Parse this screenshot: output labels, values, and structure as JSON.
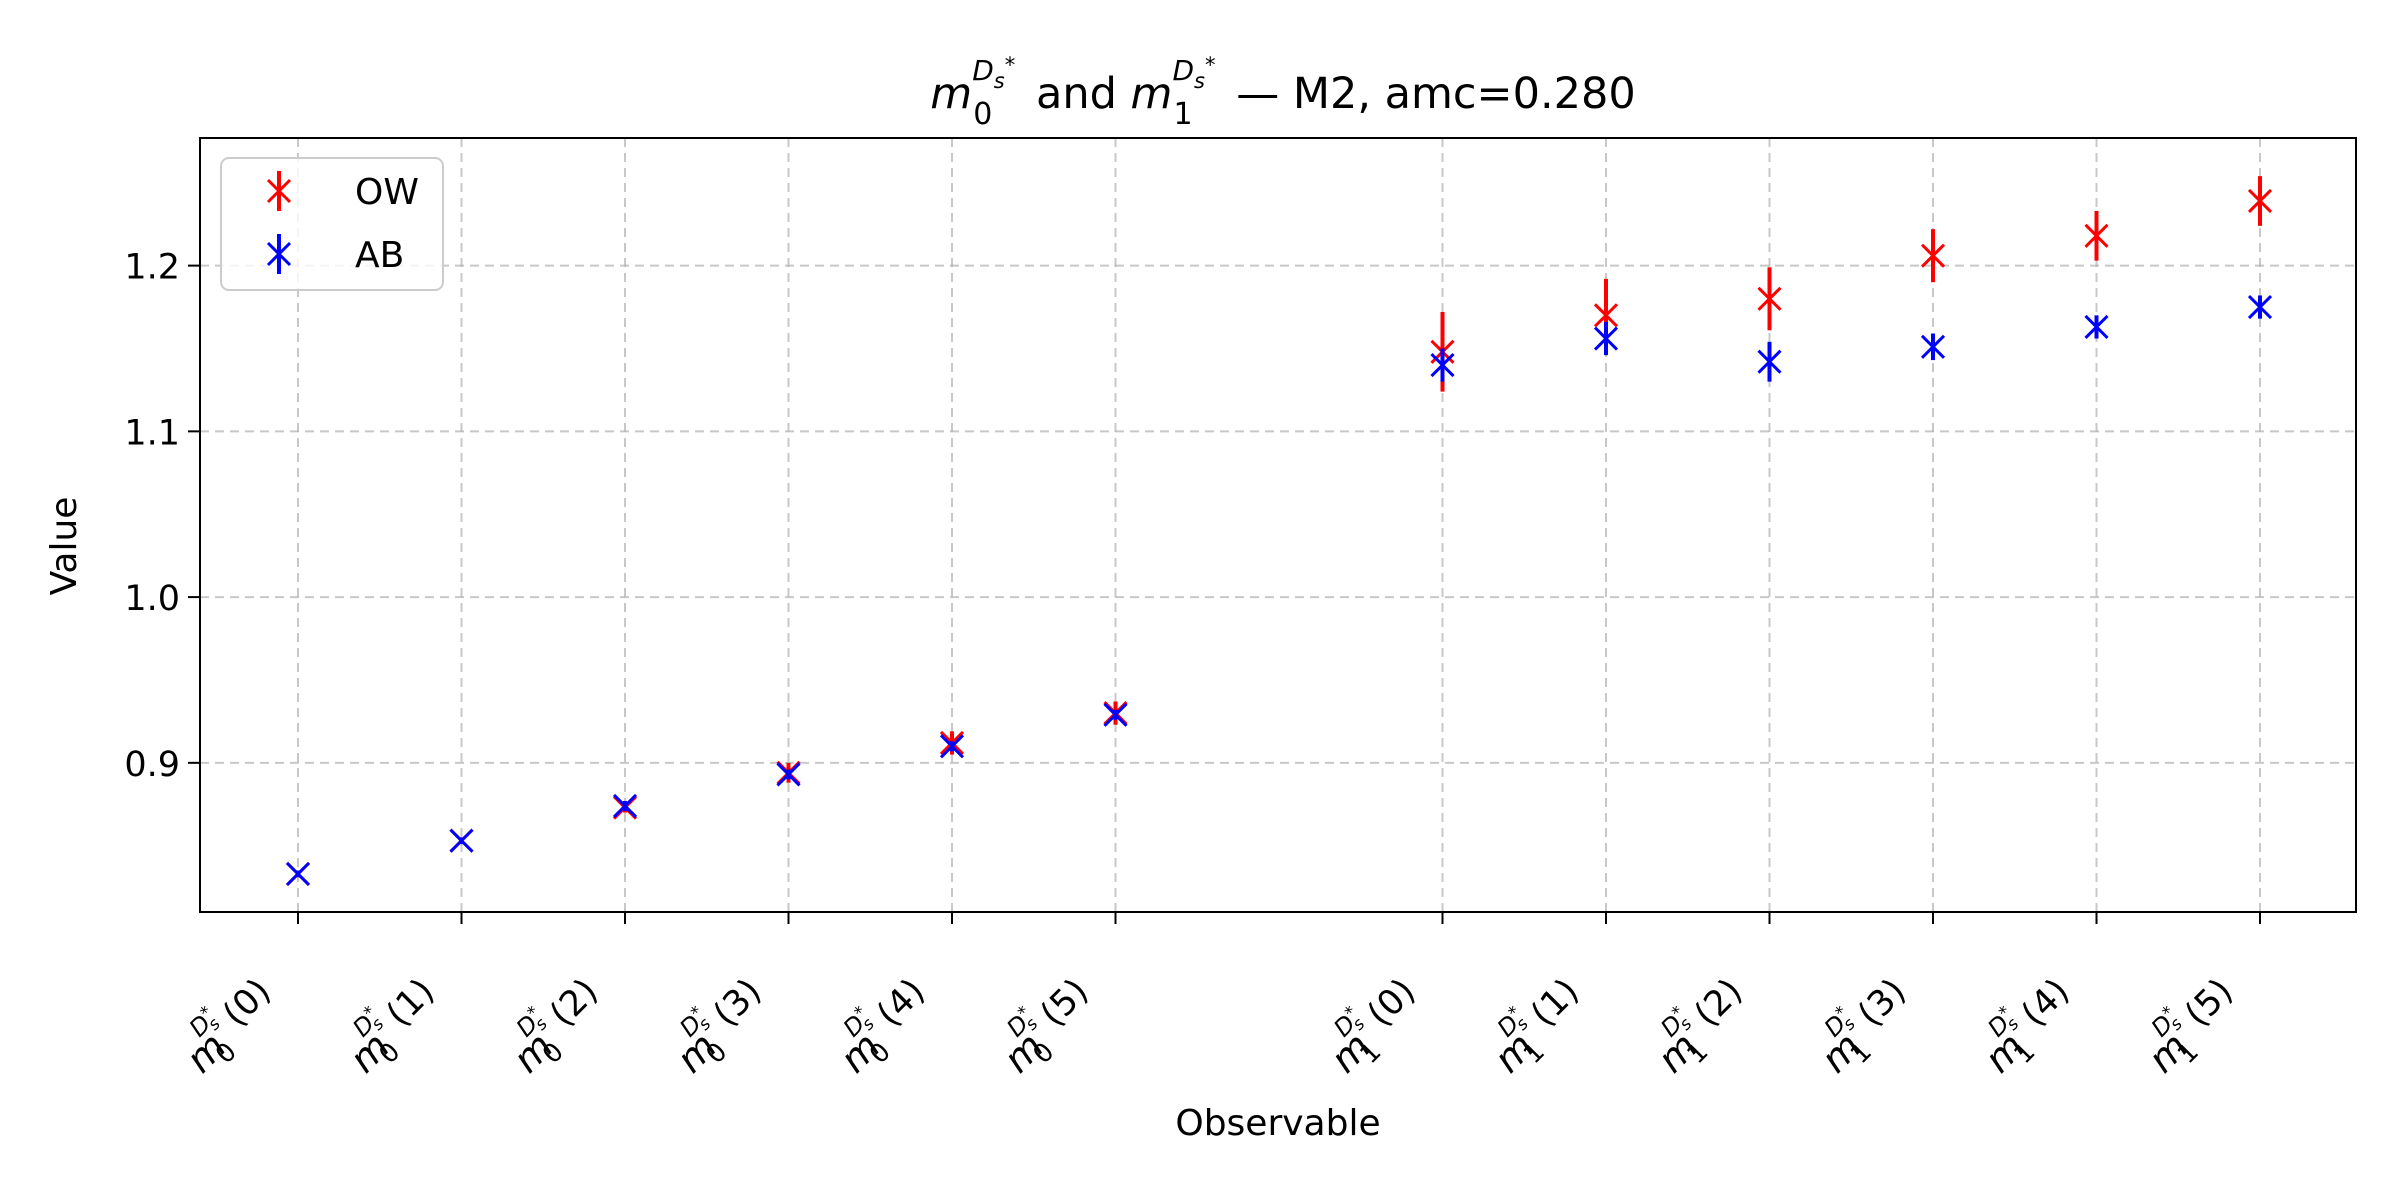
{
  "chart_data": {
    "type": "scatter",
    "title": {
      "sym0": "m",
      "sub0": "0",
      "sup0_base": "D",
      "sup0_sub": "s",
      "sup0_star": "*",
      "connector": "and",
      "sym1": "m",
      "sub1": "1",
      "sup1_base": "D",
      "sup1_sub": "s",
      "sup1_star": "*",
      "suffix": "— M2, amc=0.280"
    },
    "xlabel": "Observable",
    "ylabel": "Value",
    "ylim": [
      0.81,
      1.277
    ],
    "yticks": [
      "0.9",
      "1.0",
      "1.1",
      "1.2"
    ],
    "grid": true,
    "legend_position": "top-left",
    "categories": [
      {
        "sym": "m",
        "sub": "0",
        "sup_base": "D",
        "sup_sub": "s",
        "sup_star": "*",
        "arg": "(0)",
        "x": 0
      },
      {
        "sym": "m",
        "sub": "0",
        "sup_base": "D",
        "sup_sub": "s",
        "sup_star": "*",
        "arg": "(1)",
        "x": 1
      },
      {
        "sym": "m",
        "sub": "0",
        "sup_base": "D",
        "sup_sub": "s",
        "sup_star": "*",
        "arg": "(2)",
        "x": 2
      },
      {
        "sym": "m",
        "sub": "0",
        "sup_base": "D",
        "sup_sub": "s",
        "sup_star": "*",
        "arg": "(3)",
        "x": 3
      },
      {
        "sym": "m",
        "sub": "0",
        "sup_base": "D",
        "sup_sub": "s",
        "sup_star": "*",
        "arg": "(4)",
        "x": 4
      },
      {
        "sym": "m",
        "sub": "0",
        "sup_base": "D",
        "sup_sub": "s",
        "sup_star": "*",
        "arg": "(5)",
        "x": 5
      },
      {
        "sym": "m",
        "sub": "1",
        "sup_base": "D",
        "sup_sub": "s",
        "sup_star": "*",
        "arg": "(0)",
        "x": 7
      },
      {
        "sym": "m",
        "sub": "1",
        "sup_base": "D",
        "sup_sub": "s",
        "sup_star": "*",
        "arg": "(1)",
        "x": 8
      },
      {
        "sym": "m",
        "sub": "1",
        "sup_base": "D",
        "sup_sub": "s",
        "sup_star": "*",
        "arg": "(2)",
        "x": 9
      },
      {
        "sym": "m",
        "sub": "1",
        "sup_base": "D",
        "sup_sub": "s",
        "sup_star": "*",
        "arg": "(3)",
        "x": 10
      },
      {
        "sym": "m",
        "sub": "1",
        "sup_base": "D",
        "sup_sub": "s",
        "sup_star": "*",
        "arg": "(4)",
        "x": 11
      },
      {
        "sym": "m",
        "sub": "1",
        "sup_base": "D",
        "sup_sub": "s",
        "sup_star": "*",
        "arg": "(5)",
        "x": 12
      }
    ],
    "series": [
      {
        "name": "OW",
        "color": "#ff0000",
        "marker": "x-with-errorbar",
        "values": [
          0.833,
          0.853,
          0.873,
          0.894,
          0.912,
          0.93,
          1.148,
          1.17,
          1.18,
          1.206,
          1.218,
          1.239
        ],
        "errors": [
          0.002,
          0.002,
          0.003,
          0.006,
          0.007,
          0.007,
          0.024,
          0.022,
          0.019,
          0.016,
          0.015,
          0.015
        ]
      },
      {
        "name": "AB",
        "color": "#0000ff",
        "marker": "x-with-errorbar",
        "values": [
          0.833,
          0.853,
          0.874,
          0.893,
          0.91,
          0.929,
          1.14,
          1.156,
          1.142,
          1.151,
          1.163,
          1.175
        ],
        "errors": [
          0.002,
          0.002,
          0.003,
          0.003,
          0.003,
          0.003,
          0.01,
          0.01,
          0.012,
          0.008,
          0.007,
          0.007
        ]
      }
    ]
  }
}
